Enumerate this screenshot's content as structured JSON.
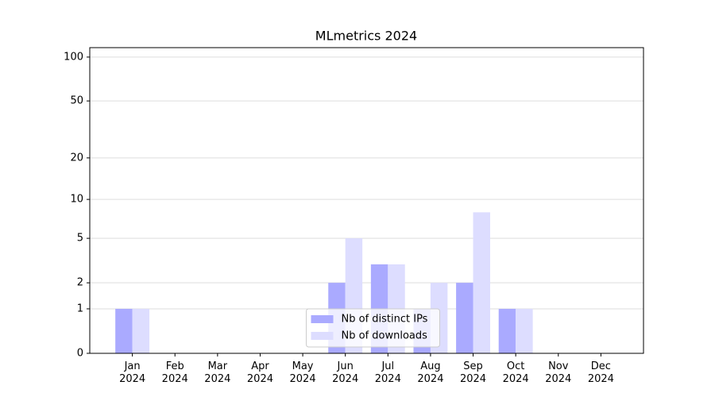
{
  "chart_data": {
    "type": "bar",
    "title": "MLmetrics 2024",
    "categories": [
      "Jan 2024",
      "Feb 2024",
      "Mar 2024",
      "Apr 2024",
      "May 2024",
      "Jun 2024",
      "Jul 2024",
      "Aug 2024",
      "Sep 2024",
      "Oct 2024",
      "Nov 2024",
      "Dec 2024"
    ],
    "series": [
      {
        "name": "Nb of distinct IPs",
        "color": "#aaaaff",
        "values": [
          1,
          0,
          0,
          0,
          0,
          2,
          3,
          1,
          2,
          1,
          0,
          0
        ]
      },
      {
        "name": "Nb of downloads",
        "color": "#ddddff",
        "values": [
          1,
          0,
          0,
          0,
          0,
          5,
          3,
          2,
          8,
          1,
          0,
          0
        ]
      }
    ],
    "yscale": "log1p",
    "ylim": [
      0,
      116
    ],
    "yticks": [
      0,
      1,
      2,
      5,
      10,
      20,
      50,
      100
    ],
    "grid": true,
    "legend": "lower center"
  }
}
